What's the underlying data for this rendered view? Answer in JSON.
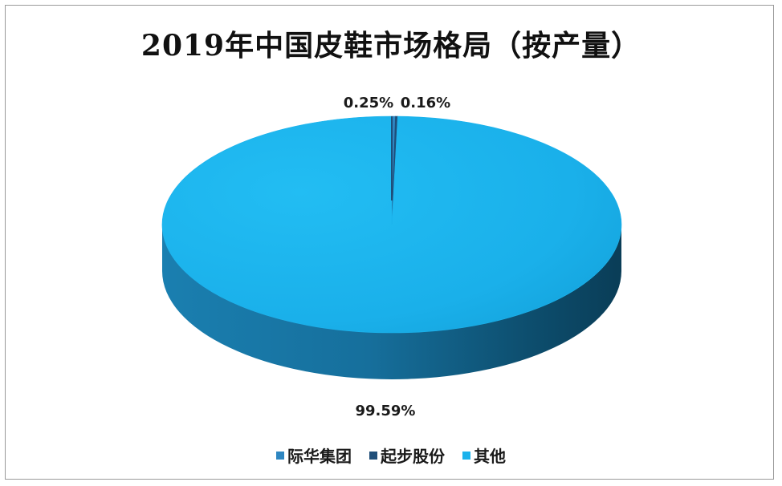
{
  "chart_data": {
    "type": "pie",
    "title": "2019年中国皮鞋市场格局（按产量）",
    "slices": [
      {
        "name": "际华集团",
        "value": 0.25,
        "label": "0.25%",
        "color": "#2e86c1"
      },
      {
        "name": "起步股份",
        "value": 0.16,
        "label": "0.16%",
        "color": "#1f4e79"
      },
      {
        "name": "其他",
        "value": 99.59,
        "label": "99.59%",
        "color": "#1bb2ec"
      }
    ],
    "legend_position": "bottom",
    "style": "3d-pie"
  }
}
